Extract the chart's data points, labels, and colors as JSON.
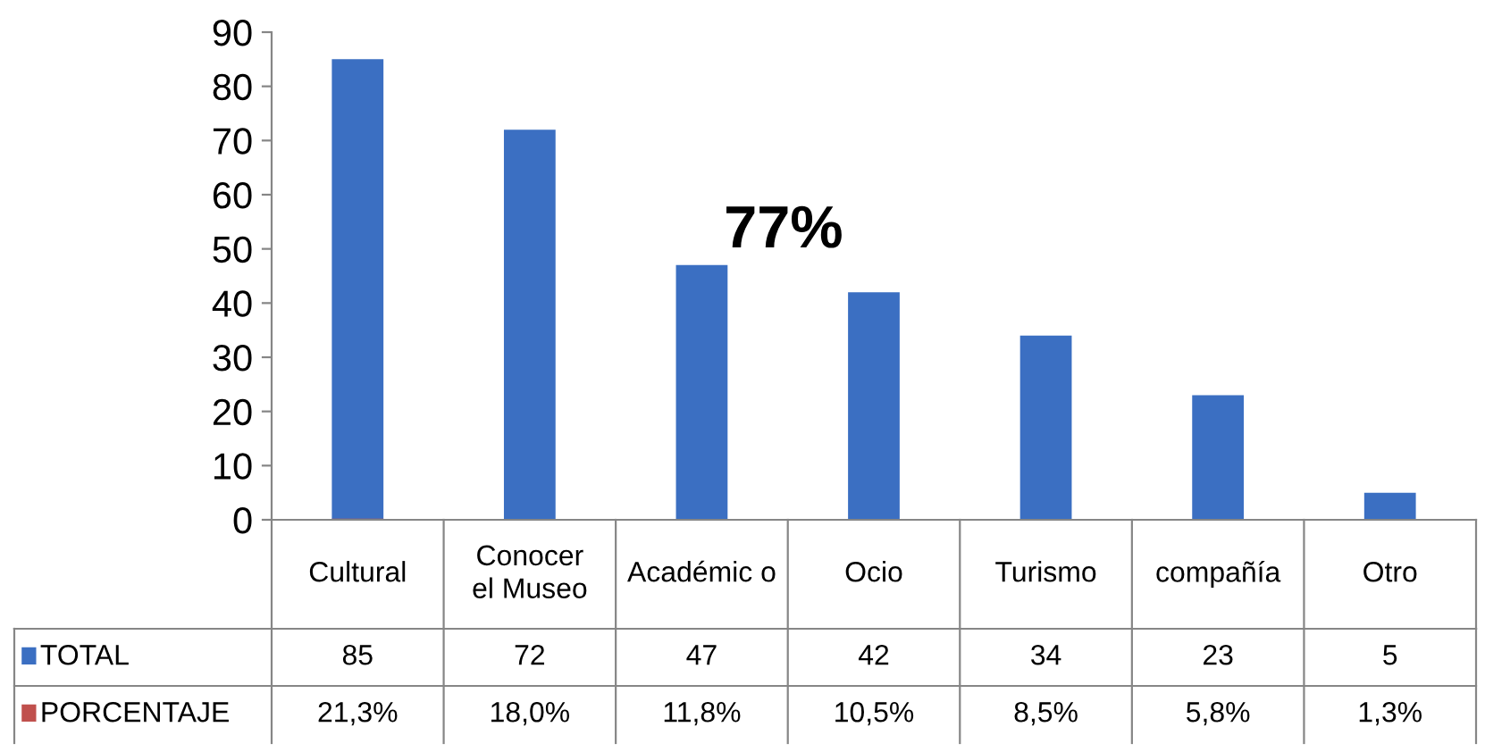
{
  "chart_data": {
    "type": "bar",
    "categories": [
      "Cultural",
      "Conocer el Museo",
      "Académic o",
      "Ocio",
      "Turismo",
      "compañía",
      "Otro"
    ],
    "series": [
      {
        "name": "TOTAL",
        "color": "#3b6fc2",
        "values": [
          85,
          72,
          47,
          42,
          34,
          23,
          5
        ],
        "value_labels": [
          "85",
          "72",
          "47",
          "42",
          "34",
          "23",
          "5"
        ]
      },
      {
        "name": "PORCENTAJE",
        "color": "#c0504d",
        "values": [
          0.213,
          0.18,
          0.118,
          0.105,
          0.085,
          0.058,
          0.013
        ],
        "value_labels": [
          "21,3%",
          "18,0%",
          "11,8%",
          "10,5%",
          "8,5%",
          "5,8%",
          "1,3%"
        ]
      }
    ],
    "ylim": [
      0,
      90
    ],
    "yticks": [
      0,
      10,
      20,
      30,
      40,
      50,
      60,
      70,
      80,
      90
    ],
    "grid": false,
    "legend": "bottom",
    "annotations": [
      "77%"
    ]
  }
}
